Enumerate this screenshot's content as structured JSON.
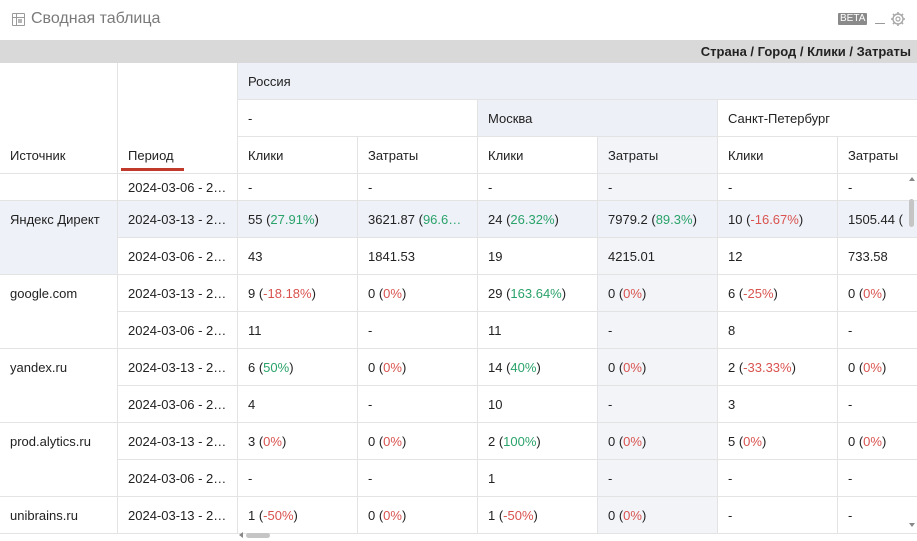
{
  "header": {
    "title": "Сводная таблица",
    "beta_label": "BETA"
  },
  "breadcrumb": "Страна / Город / Клики / Затраты",
  "table": {
    "col_source": "Источник",
    "col_period": "Период",
    "country": "Россия",
    "cities": [
      "-",
      "Москва",
      "Санкт-Петербург"
    ],
    "metric_labels": [
      "Клики",
      "Затраты",
      "Клики",
      "Затраты",
      "Клики",
      "Затраты"
    ],
    "rows": [
      {
        "source": "",
        "period": "2024-03-06 - 2…",
        "cells": [
          [
            "-",
            ""
          ],
          [
            "-",
            ""
          ],
          [
            "-",
            ""
          ],
          [
            "-",
            ""
          ],
          [
            "-",
            ""
          ],
          [
            "-",
            ""
          ]
        ]
      },
      {
        "source": "Яндекс Директ",
        "period": "2024-03-13 - 2…",
        "cells": [
          [
            "55 (",
            "27.91%",
            "pos",
            ")"
          ],
          [
            "3621.87 (",
            "96.6…",
            "pos",
            ""
          ],
          [
            "24 (",
            "26.32%",
            "pos",
            ")"
          ],
          [
            "7979.2 (",
            "89.3%",
            "pos",
            ")"
          ],
          [
            "10 (",
            "-16.67%",
            "neg",
            ")"
          ],
          [
            "1505.44 (",
            "",
            "",
            ""
          ]
        ]
      },
      {
        "source": "",
        "period": "2024-03-06 - 2…",
        "cells": [
          [
            "43"
          ],
          [
            "1841.53"
          ],
          [
            "19"
          ],
          [
            "4215.01"
          ],
          [
            "12"
          ],
          [
            "733.58"
          ]
        ]
      },
      {
        "source": "google.com",
        "period": "2024-03-13 - 2…",
        "cells": [
          [
            "9 (",
            "-18.18%",
            "neg",
            ")"
          ],
          [
            "0 (",
            "0%",
            "neg",
            ")"
          ],
          [
            "29 (",
            "163.64%",
            "pos",
            ")"
          ],
          [
            "0 (",
            "0%",
            "neg",
            ")"
          ],
          [
            "6 (",
            "-25%",
            "neg",
            ")"
          ],
          [
            "0 (",
            "0%",
            "neg",
            ")"
          ]
        ]
      },
      {
        "source": "",
        "period": "2024-03-06 - 2…",
        "cells": [
          [
            "11"
          ],
          [
            "-"
          ],
          [
            "11"
          ],
          [
            "-"
          ],
          [
            "8"
          ],
          [
            "-"
          ]
        ]
      },
      {
        "source": "yandex.ru",
        "period": "2024-03-13 - 2…",
        "cells": [
          [
            "6 (",
            "50%",
            "pos",
            ")"
          ],
          [
            "0 (",
            "0%",
            "neg",
            ")"
          ],
          [
            "14 (",
            "40%",
            "pos",
            ")"
          ],
          [
            "0 (",
            "0%",
            "neg",
            ")"
          ],
          [
            "2 (",
            "-33.33%",
            "neg",
            ")"
          ],
          [
            "0 (",
            "0%",
            "neg",
            ")"
          ]
        ]
      },
      {
        "source": "",
        "period": "2024-03-06 - 2…",
        "cells": [
          [
            "4"
          ],
          [
            "-"
          ],
          [
            "10"
          ],
          [
            "-"
          ],
          [
            "3"
          ],
          [
            "-"
          ]
        ]
      },
      {
        "source": "prod.alytics.ru",
        "period": "2024-03-13 - 2…",
        "cells": [
          [
            "3 (",
            "0%",
            "neg",
            ")"
          ],
          [
            "0 (",
            "0%",
            "neg",
            ")"
          ],
          [
            "2 (",
            "100%",
            "pos",
            ")"
          ],
          [
            "0 (",
            "0%",
            "neg",
            ")"
          ],
          [
            "5 (",
            "0%",
            "neg",
            ")"
          ],
          [
            "0 (",
            "0%",
            "neg",
            ")"
          ]
        ]
      },
      {
        "source": "",
        "period": "2024-03-06 - 2…",
        "cells": [
          [
            "-"
          ],
          [
            "-"
          ],
          [
            "1"
          ],
          [
            "-"
          ],
          [
            "-"
          ],
          [
            "-"
          ]
        ]
      },
      {
        "source": "unibrains.ru",
        "period": "2024-03-13 - 2…",
        "cells": [
          [
            "1 (",
            "-50%",
            "neg",
            ")"
          ],
          [
            "0 (",
            "0%",
            "neg",
            ")"
          ],
          [
            "1 (",
            "-50%",
            "neg",
            ")"
          ],
          [
            "0 (",
            "0%",
            "neg",
            ")"
          ],
          [
            "-"
          ],
          [
            "-"
          ]
        ]
      }
    ]
  },
  "colors": {
    "positive": "#2aa36a",
    "negative": "#d9534f",
    "header_bg": "#edf0f7",
    "sort_underline": "#c0392b"
  },
  "icons": {
    "title_icon": "table-icon",
    "minimize": "minimize-icon",
    "settings": "gear-icon"
  }
}
